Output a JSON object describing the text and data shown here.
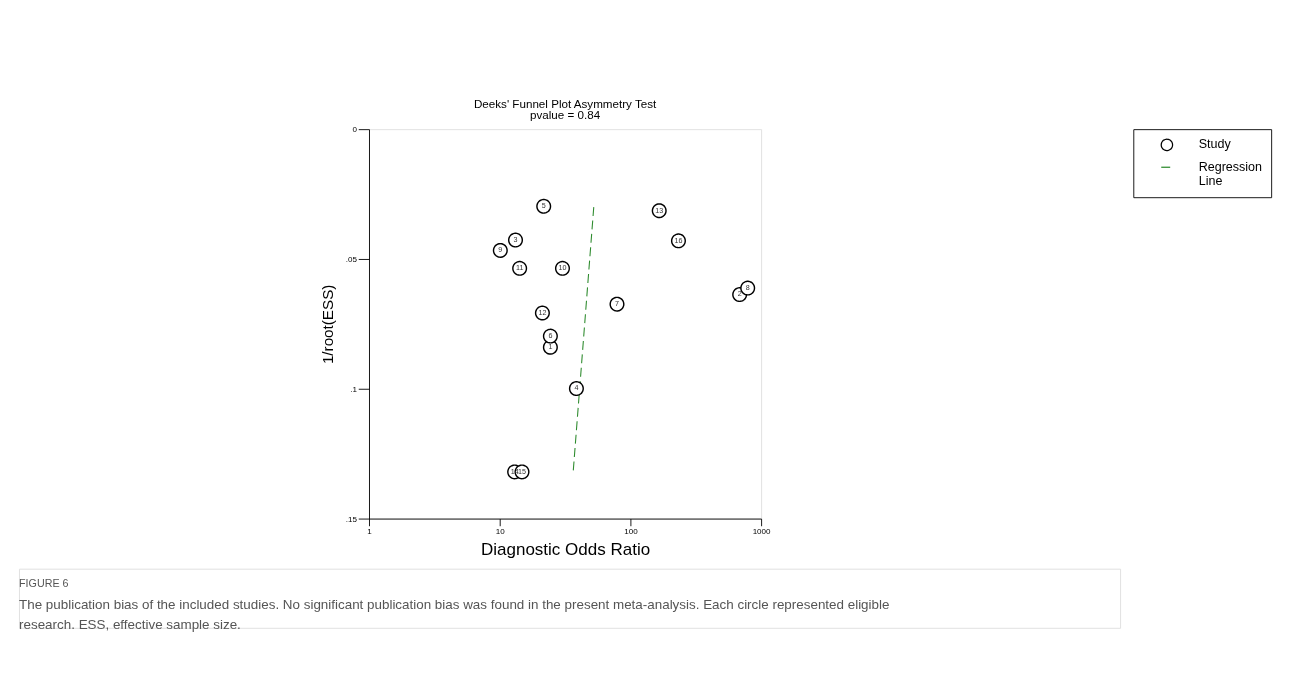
{
  "chart_data": {
    "type": "scatter",
    "title": "Deeks' Funnel Plot Asymmetry Test",
    "subtitle": "pvalue =  0.84",
    "xlabel": "Diagnostic Odds Ratio",
    "ylabel": "1/root(ESS)",
    "log": "x",
    "xlim": [
      1,
      1000
    ],
    "xticks": [
      {
        "value": 1,
        "label": "1"
      },
      {
        "value": 10,
        "label": "10"
      },
      {
        "value": 100,
        "label": "100"
      },
      {
        "value": 1000,
        "label": "1000"
      }
    ],
    "ylim": [
      0.15,
      0
    ],
    "yticks": [
      {
        "value": 0,
        "label": "0"
      },
      {
        "value": 0.05,
        "label": ".05"
      },
      {
        "value": 0.1,
        "label": ".1"
      },
      {
        "value": 0.15,
        "label": ".15"
      }
    ],
    "grid": false,
    "legend": "top right",
    "series": [
      {
        "name": "Study",
        "marker": "circle",
        "color": "#000000",
        "x": [
          24.4,
          685,
          13.2,
          38.6,
          21.7,
          24.4,
          78.9,
          789,
          10.1,
          30.2,
          14.2,
          21.2,
          166,
          13.0,
          14.8,
          233
        ],
        "values": [
          0.084,
          0.0637,
          0.0427,
          0.0999,
          0.0297,
          0.0797,
          0.0674,
          0.0612,
          0.0467,
          0.0536,
          0.0536,
          0.0708,
          0.0314,
          0.132,
          0.132,
          0.043
        ]
      },
      {
        "name": "Regression Line",
        "type": "line",
        "color": "#2e8b2e",
        "line_style": "dashed",
        "marker": "none",
        "x": [
          52.4,
          36.5
        ],
        "values": [
          0.03,
          0.1317
        ]
      }
    ],
    "annotations": [
      {
        "text": "1",
        "x": 24.4,
        "y": 0.084
      },
      {
        "text": "2",
        "x": 685,
        "y": 0.0637
      },
      {
        "text": "3",
        "x": 13.2,
        "y": 0.0427
      },
      {
        "text": "4",
        "x": 38.6,
        "y": 0.0999
      },
      {
        "text": "5",
        "x": 21.7,
        "y": 0.0297
      },
      {
        "text": "6",
        "x": 24.4,
        "y": 0.0797
      },
      {
        "text": "7",
        "x": 78.9,
        "y": 0.0674
      },
      {
        "text": "8",
        "x": 789,
        "y": 0.0612
      },
      {
        "text": "9",
        "x": 10.1,
        "y": 0.0467
      },
      {
        "text": "10",
        "x": 30.2,
        "y": 0.0536
      },
      {
        "text": "11",
        "x": 14.2,
        "y": 0.0536
      },
      {
        "text": "12",
        "x": 21.2,
        "y": 0.0708
      },
      {
        "text": "13",
        "x": 166,
        "y": 0.0314
      },
      {
        "text": "14",
        "x": 13.0,
        "y": 0.132
      },
      {
        "text": "15",
        "x": 14.8,
        "y": 0.132
      },
      {
        "text": "16",
        "x": 233,
        "y": 0.043
      },
      "FIGURE 6",
      "The publication bias of the included studies. No significant publication bias was found in the present meta-analysis. Each circle represented eligible research. ESS, effective sample size."
    ]
  }
}
